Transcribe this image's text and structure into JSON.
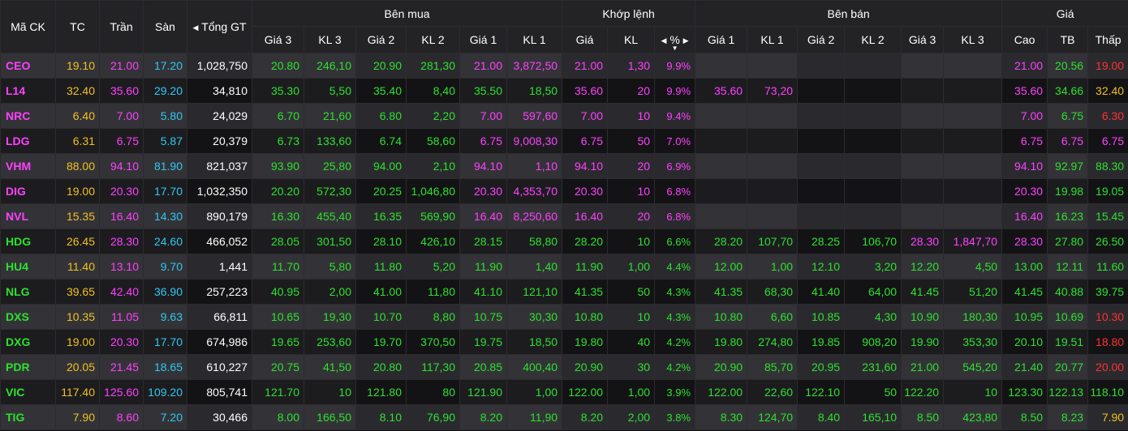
{
  "header": {
    "ma_ck": "Mã CK",
    "tc": "TC",
    "tran": "Trần",
    "san": "Sàn",
    "tong_gt": "Tổng GT",
    "ben_mua": "Bên mua",
    "khop_lenh": "Khớp lệnh",
    "ben_ban": "Bên bán",
    "gia": "Giá",
    "gia3": "Giá 3",
    "kl3": "KL 3",
    "gia2": "Giá 2",
    "kl2": "KL 2",
    "gia1": "Giá 1",
    "kl1": "KL 1",
    "k_gia": "Giá",
    "k_kl": "KL",
    "k_pct": "%",
    "s_gia1": "Giá 1",
    "s_kl1": "KL 1",
    "s_gia2": "Giá 2",
    "s_kl2": "KL 2",
    "s_gia3": "Giá 3",
    "s_kl3": "KL 3",
    "cao": "Cao",
    "tb": "TB",
    "thap": "Thấp"
  },
  "colors": {
    "ceiling": "#ff40ff",
    "up": "#2ee02e",
    "ref": "#f0c020",
    "floor": "#30c8f0",
    "down": "#ff3030",
    "neutral": "#ffffff"
  },
  "rows": [
    {
      "symbol": "CEO",
      "tc": "19.10",
      "tran": "21.00",
      "san": "17.20",
      "tong_gt": "1,028,750",
      "b_g3": "20.80",
      "b_k3": "246,10",
      "b_g2": "20.90",
      "b_k2": "281,30",
      "b_g1": "21.00",
      "b_k1": "3,872,50",
      "m_gia": "21.00",
      "m_kl": "1,30",
      "m_pct": "9.9%",
      "s_g1": "",
      "s_k1": "",
      "s_g2": "",
      "s_k2": "",
      "s_g3": "",
      "s_k3": "",
      "cao": "21.00",
      "tb": "20.56",
      "thap": "19.00",
      "c": {
        "symbol": "ceiling",
        "b_g3": "up",
        "b_k3": "up",
        "b_g2": "up",
        "b_k2": "up",
        "b_g1": "ceiling",
        "b_k1": "ceiling",
        "m": "ceiling",
        "s1": "up",
        "s2": "up",
        "s3": "up",
        "cao": "ceiling",
        "tb": "up",
        "thap": "down"
      }
    },
    {
      "symbol": "L14",
      "tc": "32.40",
      "tran": "35.60",
      "san": "29.20",
      "tong_gt": "34,810",
      "b_g3": "35.30",
      "b_k3": "5,50",
      "b_g2": "35.40",
      "b_k2": "8,40",
      "b_g1": "35.50",
      "b_k1": "18,50",
      "m_gia": "35.60",
      "m_kl": "20",
      "m_pct": "9.9%",
      "s_g1": "35.60",
      "s_k1": "73,20",
      "s_g2": "",
      "s_k2": "",
      "s_g3": "",
      "s_k3": "",
      "cao": "35.60",
      "tb": "34.66",
      "thap": "32.40",
      "c": {
        "symbol": "ceiling",
        "b_g3": "up",
        "b_k3": "up",
        "b_g2": "up",
        "b_k2": "up",
        "b_g1": "up",
        "b_k1": "up",
        "m": "ceiling",
        "s1": "ceiling",
        "s2": "up",
        "s3": "up",
        "cao": "ceiling",
        "tb": "up",
        "thap": "ref"
      }
    },
    {
      "symbol": "NRC",
      "tc": "6.40",
      "tran": "7.00",
      "san": "5.80",
      "tong_gt": "24,029",
      "b_g3": "6.70",
      "b_k3": "21,60",
      "b_g2": "6.80",
      "b_k2": "2,20",
      "b_g1": "7.00",
      "b_k1": "597,60",
      "m_gia": "7.00",
      "m_kl": "10",
      "m_pct": "9.4%",
      "s_g1": "",
      "s_k1": "",
      "s_g2": "",
      "s_k2": "",
      "s_g3": "",
      "s_k3": "",
      "cao": "7.00",
      "tb": "6.75",
      "thap": "6.30",
      "c": {
        "symbol": "ceiling",
        "b_g3": "up",
        "b_k3": "up",
        "b_g2": "up",
        "b_k2": "up",
        "b_g1": "ceiling",
        "b_k1": "ceiling",
        "m": "ceiling",
        "s1": "up",
        "s2": "up",
        "s3": "up",
        "cao": "ceiling",
        "tb": "up",
        "thap": "down"
      }
    },
    {
      "symbol": "LDG",
      "tc": "6.31",
      "tran": "6.75",
      "san": "5.87",
      "tong_gt": "20,379",
      "b_g3": "6.73",
      "b_k3": "133,60",
      "b_g2": "6.74",
      "b_k2": "58,60",
      "b_g1": "6.75",
      "b_k1": "9,008,30",
      "m_gia": "6.75",
      "m_kl": "50",
      "m_pct": "7.0%",
      "s_g1": "",
      "s_k1": "",
      "s_g2": "",
      "s_k2": "",
      "s_g3": "",
      "s_k3": "",
      "cao": "6.75",
      "tb": "6.75",
      "thap": "6.75",
      "c": {
        "symbol": "ceiling",
        "b_g3": "up",
        "b_k3": "up",
        "b_g2": "up",
        "b_k2": "up",
        "b_g1": "ceiling",
        "b_k1": "ceiling",
        "m": "ceiling",
        "s1": "up",
        "s2": "up",
        "s3": "up",
        "cao": "ceiling",
        "tb": "ceiling",
        "thap": "ceiling"
      }
    },
    {
      "symbol": "VHM",
      "tc": "88.00",
      "tran": "94.10",
      "san": "81.90",
      "tong_gt": "821,037",
      "b_g3": "93.90",
      "b_k3": "25,80",
      "b_g2": "94.00",
      "b_k2": "2,10",
      "b_g1": "94.10",
      "b_k1": "1,10",
      "m_gia": "94.10",
      "m_kl": "20",
      "m_pct": "6.9%",
      "s_g1": "",
      "s_k1": "",
      "s_g2": "",
      "s_k2": "",
      "s_g3": "",
      "s_k3": "",
      "cao": "94.10",
      "tb": "92.97",
      "thap": "88.30",
      "c": {
        "symbol": "ceiling",
        "b_g3": "up",
        "b_k3": "up",
        "b_g2": "up",
        "b_k2": "up",
        "b_g1": "ceiling",
        "b_k1": "ceiling",
        "m": "ceiling",
        "s1": "up",
        "s2": "up",
        "s3": "up",
        "cao": "ceiling",
        "tb": "up",
        "thap": "up"
      }
    },
    {
      "symbol": "DIG",
      "tc": "19.00",
      "tran": "20.30",
      "san": "17.70",
      "tong_gt": "1,032,350",
      "b_g3": "20.20",
      "b_k3": "572,30",
      "b_g2": "20.25",
      "b_k2": "1,046,80",
      "b_g1": "20.30",
      "b_k1": "4,353,70",
      "m_gia": "20.30",
      "m_kl": "10",
      "m_pct": "6.8%",
      "s_g1": "",
      "s_k1": "",
      "s_g2": "",
      "s_k2": "",
      "s_g3": "",
      "s_k3": "",
      "cao": "20.30",
      "tb": "19.98",
      "thap": "19.05",
      "c": {
        "symbol": "ceiling",
        "b_g3": "up",
        "b_k3": "up",
        "b_g2": "up",
        "b_k2": "up",
        "b_g1": "ceiling",
        "b_k1": "ceiling",
        "m": "ceiling",
        "s1": "up",
        "s2": "up",
        "s3": "up",
        "cao": "ceiling",
        "tb": "up",
        "thap": "up"
      }
    },
    {
      "symbol": "NVL",
      "tc": "15.35",
      "tran": "16.40",
      "san": "14.30",
      "tong_gt": "890,179",
      "b_g3": "16.30",
      "b_k3": "455,40",
      "b_g2": "16.35",
      "b_k2": "569,90",
      "b_g1": "16.40",
      "b_k1": "8,250,60",
      "m_gia": "16.40",
      "m_kl": "20",
      "m_pct": "6.8%",
      "s_g1": "",
      "s_k1": "",
      "s_g2": "",
      "s_k2": "",
      "s_g3": "",
      "s_k3": "",
      "cao": "16.40",
      "tb": "16.23",
      "thap": "15.45",
      "c": {
        "symbol": "ceiling",
        "b_g3": "up",
        "b_k3": "up",
        "b_g2": "up",
        "b_k2": "up",
        "b_g1": "ceiling",
        "b_k1": "ceiling",
        "m": "ceiling",
        "s1": "up",
        "s2": "up",
        "s3": "up",
        "cao": "ceiling",
        "tb": "up",
        "thap": "up"
      }
    },
    {
      "symbol": "HDG",
      "tc": "26.45",
      "tran": "28.30",
      "san": "24.60",
      "tong_gt": "466,052",
      "b_g3": "28.05",
      "b_k3": "301,50",
      "b_g2": "28.10",
      "b_k2": "426,10",
      "b_g1": "28.15",
      "b_k1": "58,80",
      "m_gia": "28.20",
      "m_kl": "10",
      "m_pct": "6.6%",
      "s_g1": "28.20",
      "s_k1": "107,70",
      "s_g2": "28.25",
      "s_k2": "106,70",
      "s_g3": "28.30",
      "s_k3": "1,847,70",
      "cao": "28.30",
      "tb": "27.80",
      "thap": "26.50",
      "c": {
        "symbol": "up",
        "b_g3": "up",
        "b_k3": "up",
        "b_g2": "up",
        "b_k2": "up",
        "b_g1": "up",
        "b_k1": "up",
        "m": "up",
        "s1": "up",
        "s2": "up",
        "s3": "ceiling",
        "cao": "ceiling",
        "tb": "up",
        "thap": "up"
      }
    },
    {
      "symbol": "HU4",
      "tc": "11.40",
      "tran": "13.10",
      "san": "9.70",
      "tong_gt": "1,441",
      "b_g3": "11.70",
      "b_k3": "5,80",
      "b_g2": "11.80",
      "b_k2": "5,20",
      "b_g1": "11.90",
      "b_k1": "1,40",
      "m_gia": "11.90",
      "m_kl": "1,00",
      "m_pct": "4.4%",
      "s_g1": "12.00",
      "s_k1": "1,00",
      "s_g2": "12.10",
      "s_k2": "3,20",
      "s_g3": "12.20",
      "s_k3": "4,50",
      "cao": "13.00",
      "tb": "12.11",
      "thap": "11.60",
      "c": {
        "symbol": "up",
        "b_g3": "up",
        "b_k3": "up",
        "b_g2": "up",
        "b_k2": "up",
        "b_g1": "up",
        "b_k1": "up",
        "m": "up",
        "s1": "up",
        "s2": "up",
        "s3": "up",
        "cao": "up",
        "tb": "up",
        "thap": "up"
      }
    },
    {
      "symbol": "NLG",
      "tc": "39.65",
      "tran": "42.40",
      "san": "36.90",
      "tong_gt": "257,223",
      "b_g3": "40.95",
      "b_k3": "2,00",
      "b_g2": "41.00",
      "b_k2": "11,80",
      "b_g1": "41.10",
      "b_k1": "121,10",
      "m_gia": "41.35",
      "m_kl": "50",
      "m_pct": "4.3%",
      "s_g1": "41.35",
      "s_k1": "68,30",
      "s_g2": "41.40",
      "s_k2": "64,00",
      "s_g3": "41.45",
      "s_k3": "51,20",
      "cao": "41.45",
      "tb": "40.88",
      "thap": "39.75",
      "c": {
        "symbol": "up",
        "b_g3": "up",
        "b_k3": "up",
        "b_g2": "up",
        "b_k2": "up",
        "b_g1": "up",
        "b_k1": "up",
        "m": "up",
        "s1": "up",
        "s2": "up",
        "s3": "up",
        "cao": "up",
        "tb": "up",
        "thap": "up"
      }
    },
    {
      "symbol": "DXS",
      "tc": "10.35",
      "tran": "11.05",
      "san": "9.63",
      "tong_gt": "66,811",
      "b_g3": "10.65",
      "b_k3": "19,30",
      "b_g2": "10.70",
      "b_k2": "8,80",
      "b_g1": "10.75",
      "b_k1": "30,30",
      "m_gia": "10.80",
      "m_kl": "10",
      "m_pct": "4.3%",
      "s_g1": "10.80",
      "s_k1": "6,60",
      "s_g2": "10.85",
      "s_k2": "4,30",
      "s_g3": "10.90",
      "s_k3": "180,30",
      "cao": "10.95",
      "tb": "10.69",
      "thap": "10.30",
      "c": {
        "symbol": "up",
        "b_g3": "up",
        "b_k3": "up",
        "b_g2": "up",
        "b_k2": "up",
        "b_g1": "up",
        "b_k1": "up",
        "m": "up",
        "s1": "up",
        "s2": "up",
        "s3": "up",
        "cao": "up",
        "tb": "up",
        "thap": "down"
      }
    },
    {
      "symbol": "DXG",
      "tc": "19.00",
      "tran": "20.30",
      "san": "17.70",
      "tong_gt": "674,986",
      "b_g3": "19.65",
      "b_k3": "253,60",
      "b_g2": "19.70",
      "b_k2": "370,50",
      "b_g1": "19.75",
      "b_k1": "18,50",
      "m_gia": "19.80",
      "m_kl": "40",
      "m_pct": "4.2%",
      "s_g1": "19.80",
      "s_k1": "274,80",
      "s_g2": "19.85",
      "s_k2": "908,20",
      "s_g3": "19.90",
      "s_k3": "353,30",
      "cao": "20.10",
      "tb": "19.51",
      "thap": "18.80",
      "c": {
        "symbol": "up",
        "b_g3": "up",
        "b_k3": "up",
        "b_g2": "up",
        "b_k2": "up",
        "b_g1": "up",
        "b_k1": "up",
        "m": "up",
        "s1": "up",
        "s2": "up",
        "s3": "up",
        "cao": "up",
        "tb": "up",
        "thap": "down"
      }
    },
    {
      "symbol": "PDR",
      "tc": "20.05",
      "tran": "21.45",
      "san": "18.65",
      "tong_gt": "610,227",
      "b_g3": "20.75",
      "b_k3": "41,50",
      "b_g2": "20.80",
      "b_k2": "117,30",
      "b_g1": "20.85",
      "b_k1": "400,40",
      "m_gia": "20.90",
      "m_kl": "30",
      "m_pct": "4.2%",
      "s_g1": "20.90",
      "s_k1": "85,70",
      "s_g2": "20.95",
      "s_k2": "231,60",
      "s_g3": "21.00",
      "s_k3": "545,20",
      "cao": "21.40",
      "tb": "20.77",
      "thap": "20.00",
      "c": {
        "symbol": "up",
        "b_g3": "up",
        "b_k3": "up",
        "b_g2": "up",
        "b_k2": "up",
        "b_g1": "up",
        "b_k1": "up",
        "m": "up",
        "s1": "up",
        "s2": "up",
        "s3": "up",
        "cao": "up",
        "tb": "up",
        "thap": "down"
      }
    },
    {
      "symbol": "VIC",
      "tc": "117.40",
      "tran": "125.60",
      "san": "109.20",
      "tong_gt": "805,741",
      "b_g3": "121.70",
      "b_k3": "10",
      "b_g2": "121.80",
      "b_k2": "80",
      "b_g1": "121.90",
      "b_k1": "1,00",
      "m_gia": "122.00",
      "m_kl": "1,00",
      "m_pct": "3.9%",
      "s_g1": "122.00",
      "s_k1": "22,60",
      "s_g2": "122.10",
      "s_k2": "50",
      "s_g3": "122.20",
      "s_k3": "10",
      "cao": "123.30",
      "tb": "122.13",
      "thap": "118.10",
      "c": {
        "symbol": "up",
        "b_g3": "up",
        "b_k3": "up",
        "b_g2": "up",
        "b_k2": "up",
        "b_g1": "up",
        "b_k1": "up",
        "m": "up",
        "s1": "up",
        "s2": "up",
        "s3": "up",
        "cao": "up",
        "tb": "up",
        "thap": "up"
      }
    },
    {
      "symbol": "TIG",
      "tc": "7.90",
      "tran": "8.60",
      "san": "7.20",
      "tong_gt": "30,466",
      "b_g3": "8.00",
      "b_k3": "166,50",
      "b_g2": "8.10",
      "b_k2": "76,90",
      "b_g1": "8.20",
      "b_k1": "11,90",
      "m_gia": "8.20",
      "m_kl": "2,00",
      "m_pct": "3.8%",
      "s_g1": "8.30",
      "s_k1": "124,70",
      "s_g2": "8.40",
      "s_k2": "165,10",
      "s_g3": "8.50",
      "s_k3": "423,80",
      "cao": "8.50",
      "tb": "8.23",
      "thap": "7.90",
      "c": {
        "symbol": "up",
        "b_g3": "up",
        "b_k3": "up",
        "b_g2": "up",
        "b_k2": "up",
        "b_g1": "up",
        "b_k1": "up",
        "m": "up",
        "s1": "up",
        "s2": "up",
        "s3": "up",
        "cao": "up",
        "tb": "up",
        "thap": "ref"
      }
    }
  ]
}
